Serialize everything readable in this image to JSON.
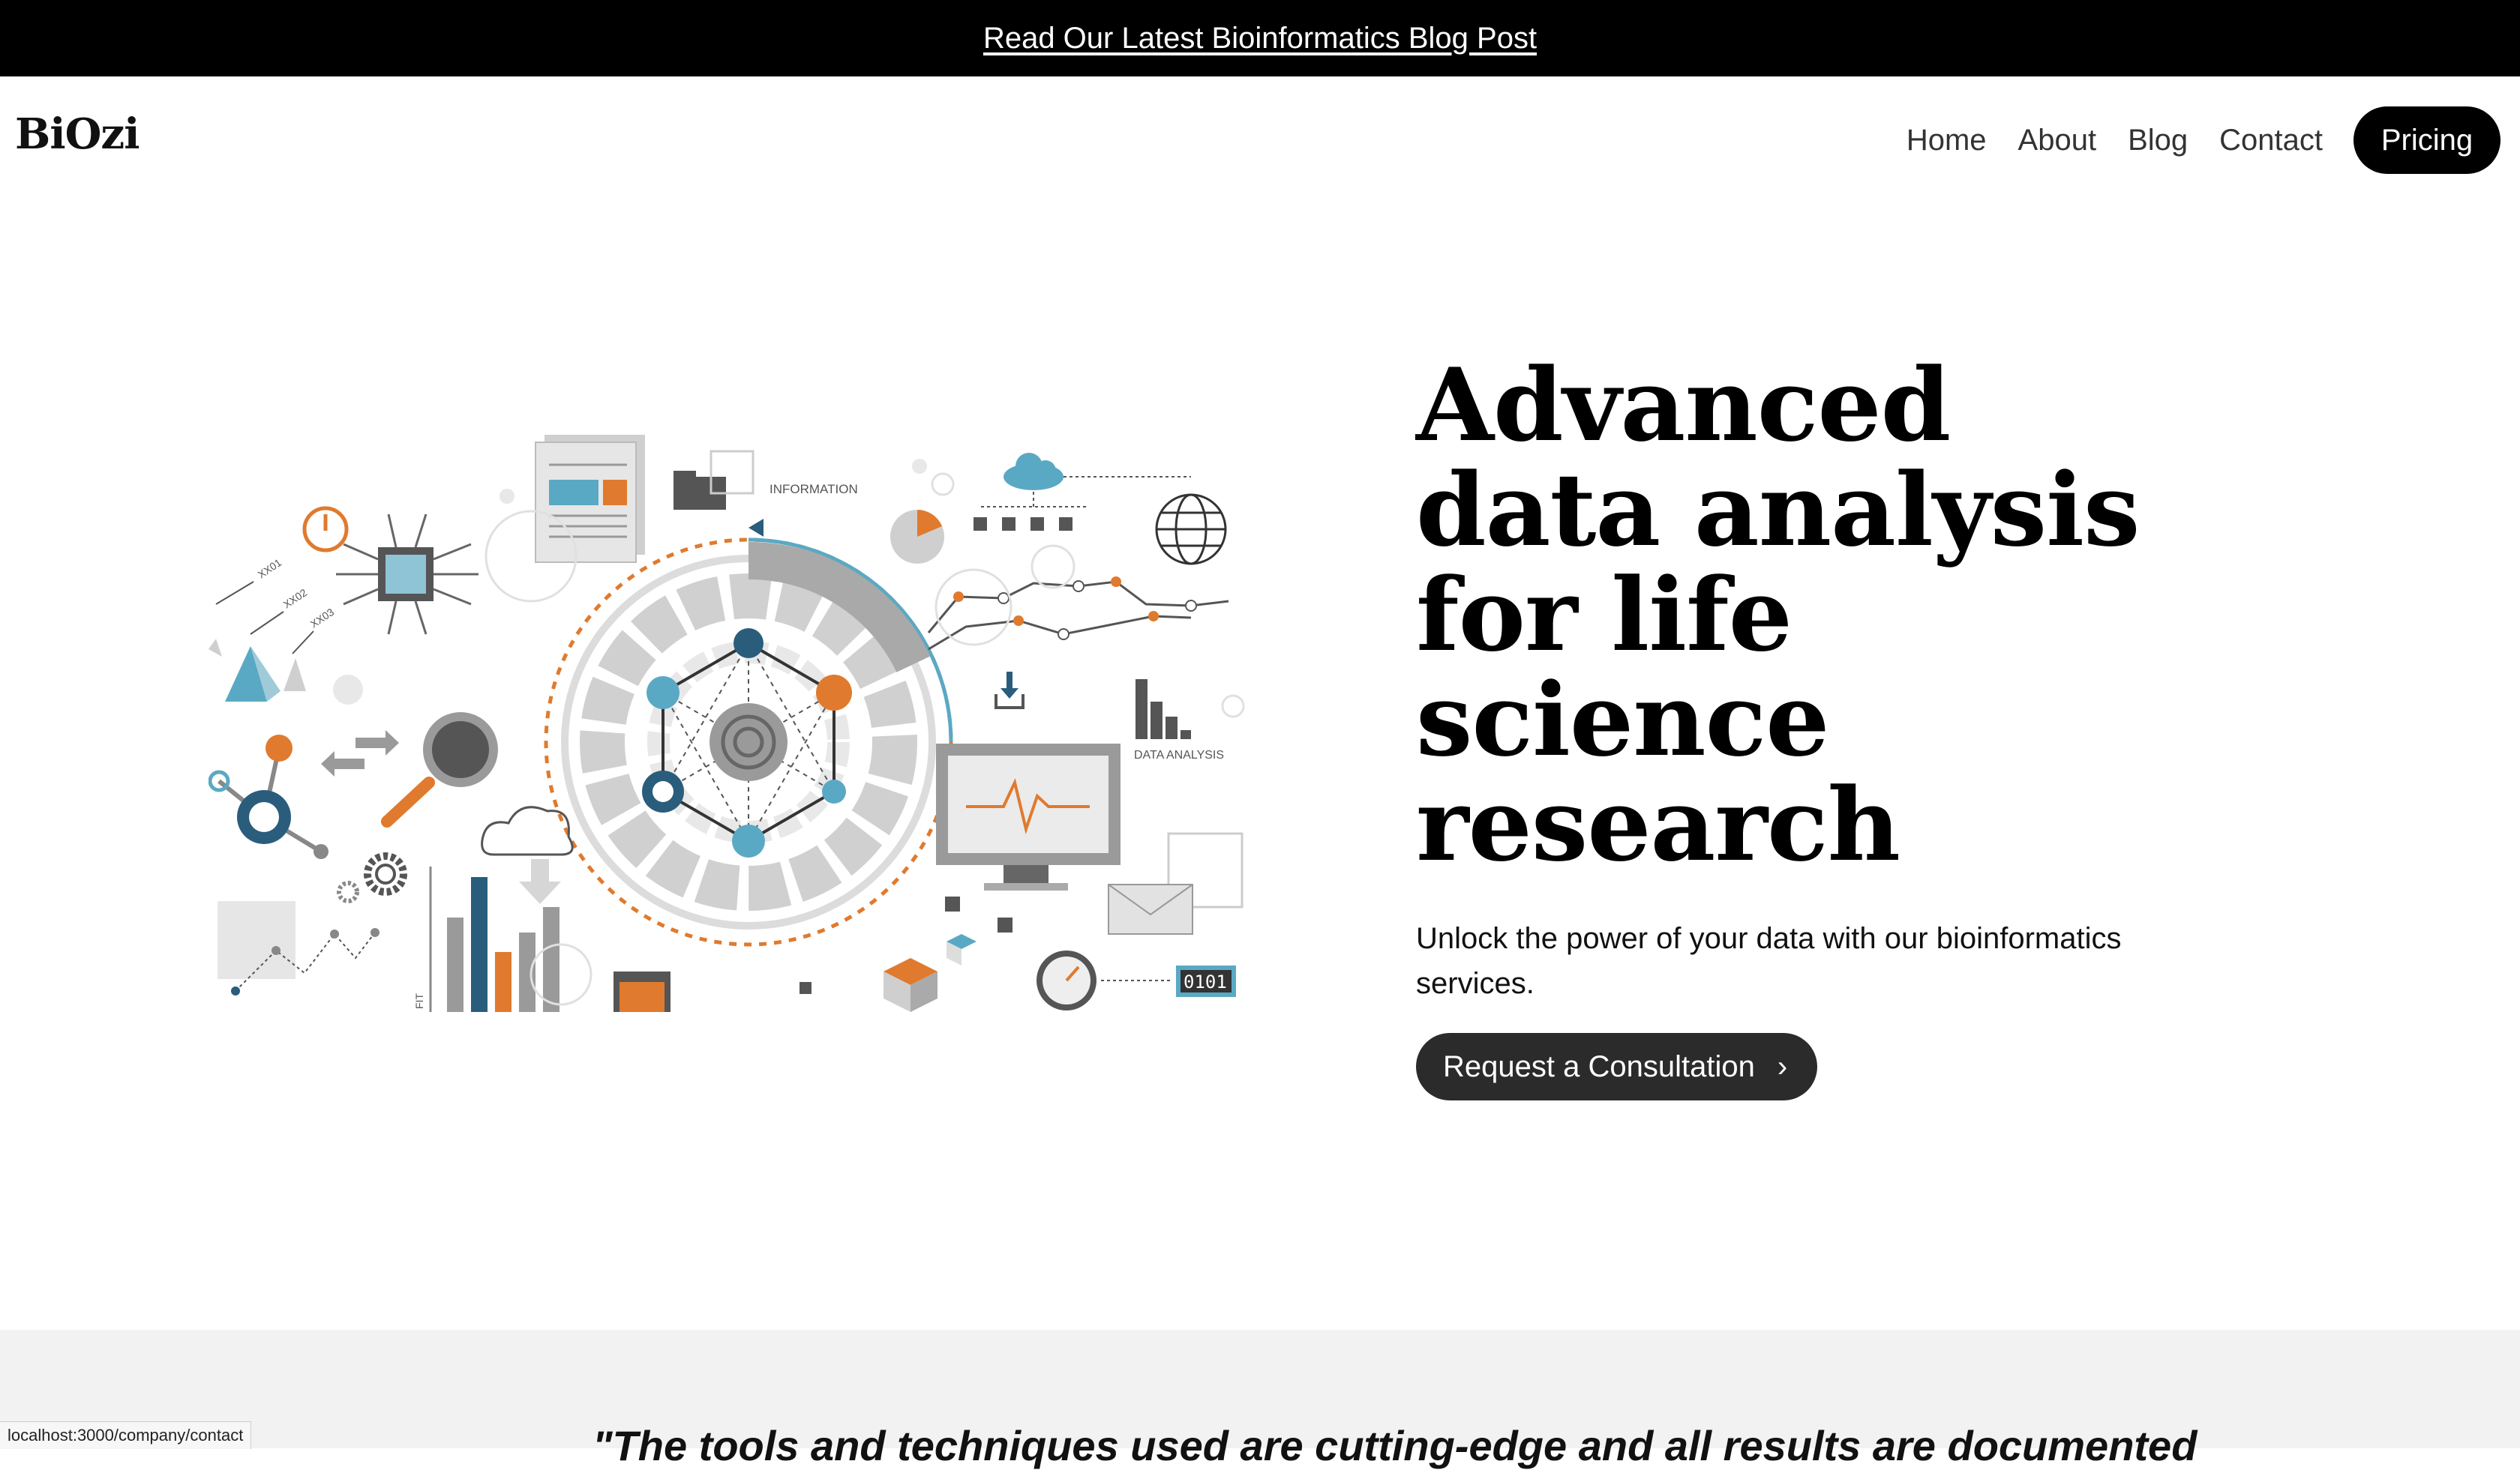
{
  "announcement": {
    "link_text": "Read Our Latest Bioinformatics Blog Post"
  },
  "header": {
    "logo": "BiOzi",
    "nav": [
      "Home",
      "About",
      "Blog",
      "Contact"
    ],
    "cta": "Pricing"
  },
  "hero": {
    "title_lines": [
      "Advanced",
      "data analysis",
      "for life",
      "science",
      "research"
    ],
    "subtitle": "Unlock the power of your data with our bioinformatics services.",
    "button": "Request a Consultation",
    "illustration": {
      "labels": {
        "information": "INFORMATION",
        "data_analysis": "DATA ANALYSIS",
        "xx01": "XX01",
        "xx02": "XX02",
        "xx03": "XX03",
        "binary": "0101",
        "fit": "FIT"
      }
    }
  },
  "testimonial": {
    "quote_partial": "\"The tools and techniques used are cutting-edge and all results are documented"
  },
  "status_bar": {
    "url": "localhost:3000/company/contact"
  },
  "colors": {
    "accent_orange": "#e07a2e",
    "accent_blue": "#5aa9c4",
    "dark_blue": "#2a5d7c",
    "gray": "#9a9a9a"
  },
  "icons": [
    "chevron-right-icon",
    "power-icon",
    "chip-icon",
    "cloud-icon",
    "globe-icon",
    "monitor-icon",
    "envelope-icon",
    "gear-icon",
    "magnifier-icon",
    "download-icon",
    "stopwatch-icon",
    "document-icon",
    "folder-icon"
  ]
}
